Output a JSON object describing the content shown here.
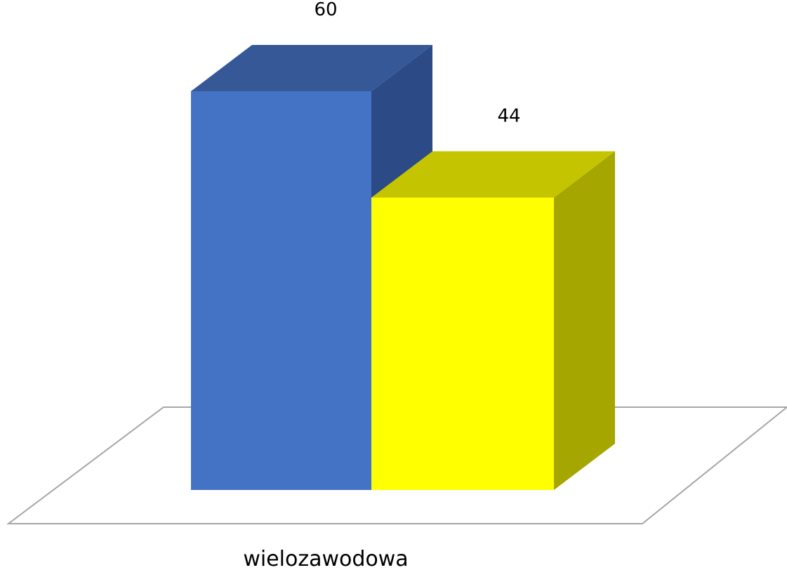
{
  "chart_data": {
    "type": "bar",
    "style": "3d-clustered",
    "title": "",
    "xlabel": "",
    "ylabel": "",
    "categories": [
      "wielozawodowa"
    ],
    "series": [
      {
        "values": [
          60
        ],
        "color": "#4472C4",
        "top_color": "#365896",
        "side_color": "#2B4A86"
      },
      {
        "values": [
          44
        ],
        "color": "#FFFF00",
        "top_color": "#C4C400",
        "side_color": "#A6A600"
      }
    ],
    "data_labels": [
      "60",
      "44"
    ],
    "ylim": [
      0,
      60
    ],
    "grid": false,
    "legend": "none",
    "floor_color": "#A6A6A6"
  }
}
